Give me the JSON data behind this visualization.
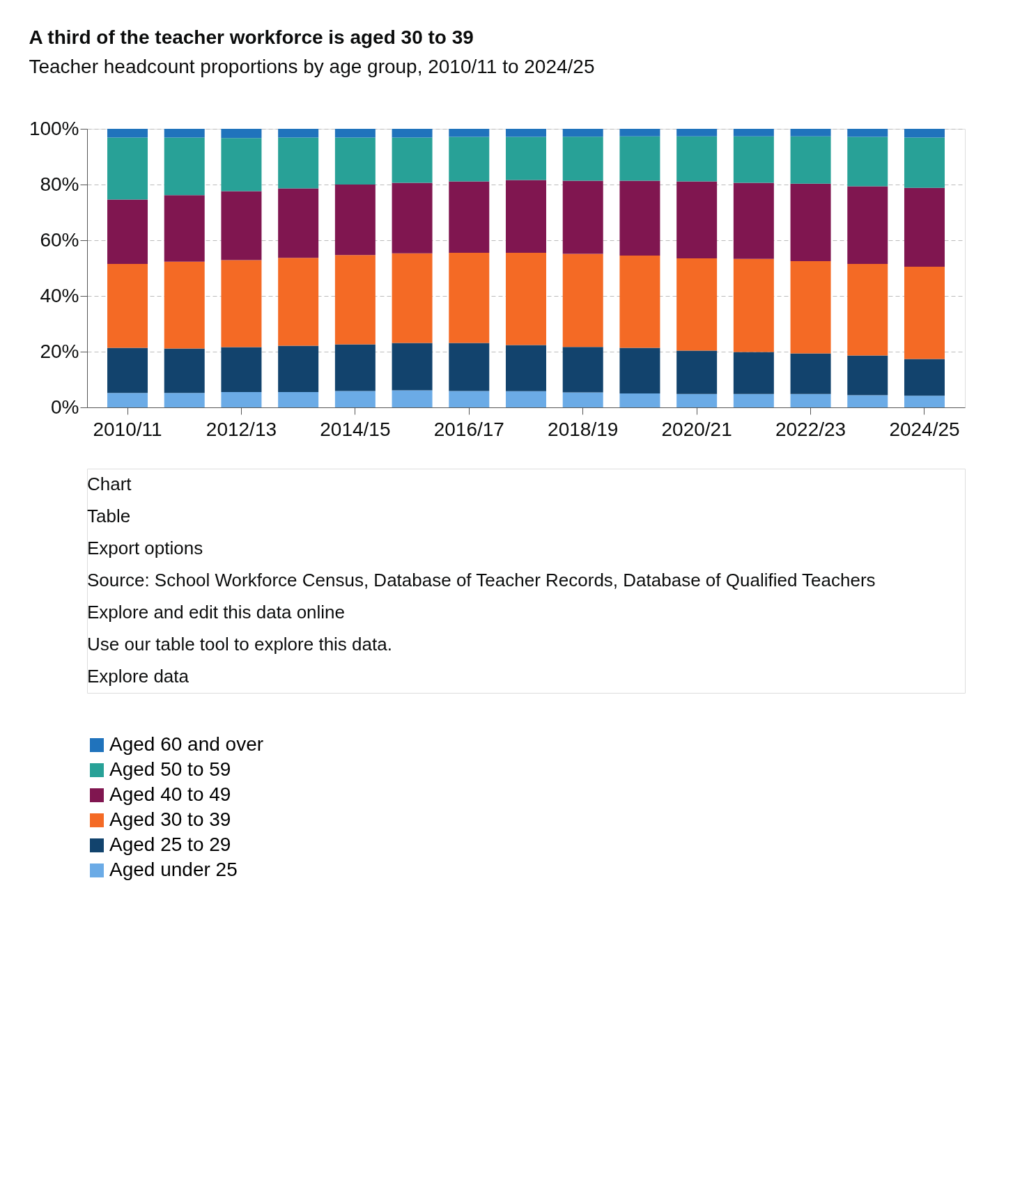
{
  "chart_data": {
    "type": "bar",
    "stacked": true,
    "title": "A third of the teacher workforce is aged 30 to 39",
    "subtitle": "Teacher headcount proportions by age group, 2010/11 to 2024/25",
    "categories": [
      "2010/11",
      null,
      "2012/13",
      null,
      "2014/15",
      null,
      "2016/17",
      null,
      "2018/19",
      null,
      "2020/21",
      null,
      "2022/23",
      null,
      "2024/25"
    ],
    "series": [
      {
        "name": "Aged under 25",
        "color": "#6babe6",
        "values": [
          5.2,
          5.2,
          5.5,
          5.5,
          5.9,
          6.1,
          5.9,
          5.8,
          5.4,
          5.0,
          4.8,
          4.8,
          4.8,
          4.4,
          4.2
        ]
      },
      {
        "name": "Aged 25 to 29",
        "color": "#12436d",
        "values": [
          16.2,
          15.9,
          16.1,
          16.6,
          16.7,
          17.0,
          17.2,
          16.6,
          16.3,
          16.4,
          15.6,
          15.1,
          14.6,
          14.2,
          13.2
        ]
      },
      {
        "name": "Aged 30 to 39",
        "color": "#f46a25",
        "values": [
          30.1,
          31.2,
          31.3,
          31.6,
          32.1,
          32.2,
          32.4,
          33.1,
          33.4,
          33.1,
          33.1,
          33.4,
          33.1,
          32.9,
          33.1
        ]
      },
      {
        "name": "Aged 40 to 49",
        "color": "#801650",
        "values": [
          23.1,
          23.9,
          24.7,
          24.9,
          25.3,
          25.3,
          25.6,
          26.1,
          26.3,
          26.9,
          27.6,
          27.3,
          27.8,
          27.9,
          28.3
        ]
      },
      {
        "name": "Aged 50 to 59",
        "color": "#28a197",
        "values": [
          22.3,
          20.7,
          19.1,
          18.3,
          16.9,
          16.3,
          16.0,
          15.5,
          15.8,
          15.9,
          16.2,
          16.7,
          17.0,
          17.7,
          18.1
        ]
      },
      {
        "name": "Aged 60 and over",
        "color": "#2073bc",
        "values": [
          3.1,
          3.1,
          3.3,
          3.1,
          3.1,
          3.1,
          2.9,
          2.9,
          2.8,
          2.7,
          2.7,
          2.7,
          2.7,
          2.9,
          3.1
        ]
      }
    ],
    "ylim": [
      0,
      100
    ],
    "yticks": [
      {
        "value": 0,
        "label": "0%"
      },
      {
        "value": 20,
        "label": "20%"
      },
      {
        "value": 40,
        "label": "40%"
      },
      {
        "value": 60,
        "label": "60%"
      },
      {
        "value": 80,
        "label": "80%"
      },
      {
        "value": 100,
        "label": "100%"
      }
    ],
    "grid": "y",
    "legend": "bottom",
    "annotations": [
      "Chart",
      "Table",
      "Export options",
      "Source: School Workforce Census, Database of Teacher Records, Database of Qualified Teachers",
      "Explore and edit this data online",
      "Use our table tool to explore this data.",
      "Explore data"
    ]
  }
}
